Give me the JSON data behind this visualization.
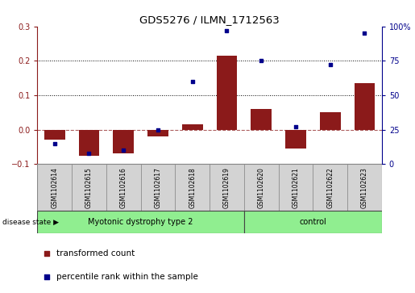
{
  "title": "GDS5276 / ILMN_1712563",
  "samples": [
    "GSM1102614",
    "GSM1102615",
    "GSM1102616",
    "GSM1102617",
    "GSM1102618",
    "GSM1102619",
    "GSM1102620",
    "GSM1102621",
    "GSM1102622",
    "GSM1102623"
  ],
  "transformed_count": [
    -0.03,
    -0.075,
    -0.07,
    -0.02,
    0.015,
    0.215,
    0.06,
    -0.055,
    0.05,
    0.135
  ],
  "percentile_rank": [
    15,
    8,
    10,
    25,
    60,
    97,
    75,
    27,
    72,
    95
  ],
  "disease_groups": [
    {
      "label": "Myotonic dystrophy type 2",
      "start": 0,
      "end": 6,
      "color": "#90EE90"
    },
    {
      "label": "control",
      "start": 6,
      "end": 10,
      "color": "#90EE90"
    }
  ],
  "ylim_left": [
    -0.1,
    0.3
  ],
  "ylim_right": [
    0,
    100
  ],
  "yticks_left": [
    -0.1,
    0.0,
    0.1,
    0.2,
    0.3
  ],
  "yticks_right": [
    0,
    25,
    50,
    75,
    100
  ],
  "bar_color": "#8B1A1A",
  "dot_color": "#00008B",
  "zero_line_color": "#8B1A1A",
  "grid_color": "black",
  "label_color_left": "#8B1A1A",
  "label_color_right": "#00008B",
  "legend_bar_label": "transformed count",
  "legend_dot_label": "percentile rank within the sample",
  "disease_state_label": "disease state"
}
